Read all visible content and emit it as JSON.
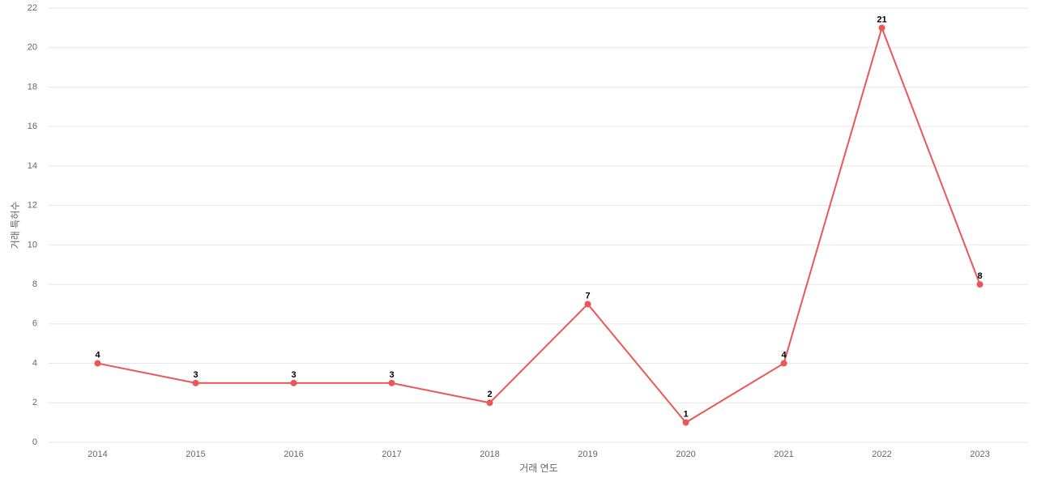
{
  "chart_data": {
    "type": "line",
    "x_label": "거래 연도",
    "y_label": "거래 특허수",
    "categories": [
      "2014",
      "2015",
      "2016",
      "2017",
      "2018",
      "2019",
      "2020",
      "2021",
      "2022",
      "2023"
    ],
    "series": [
      {
        "name": "거래 특허수",
        "color": "#eb5757",
        "values": [
          4,
          3,
          3,
          3,
          2,
          7,
          1,
          4,
          21,
          8
        ]
      }
    ],
    "ylim": [
      0,
      22
    ],
    "yticks": [
      0,
      2,
      4,
      6,
      8,
      10,
      12,
      14,
      16,
      18,
      20,
      22
    ],
    "grid": true
  }
}
